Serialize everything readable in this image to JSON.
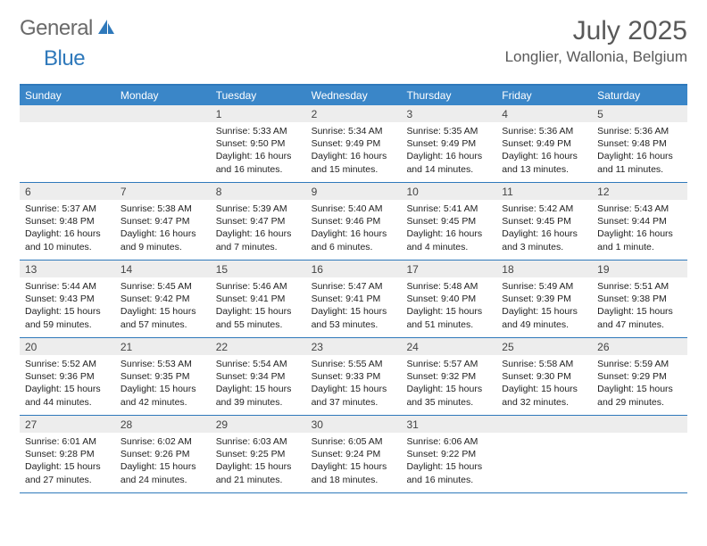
{
  "brand": {
    "part1": "General",
    "part2": "Blue"
  },
  "title": "July 2025",
  "location": "Longlier, Wallonia, Belgium",
  "colors": {
    "header_bar": "#3a86c8",
    "header_border": "#2f79bb",
    "daynum_bg": "#ededed",
    "text_gray": "#595959"
  },
  "dow": [
    "Sunday",
    "Monday",
    "Tuesday",
    "Wednesday",
    "Thursday",
    "Friday",
    "Saturday"
  ],
  "weeks": [
    [
      null,
      null,
      {
        "n": "1",
        "sr": "5:33 AM",
        "ss": "9:50 PM",
        "dl": "16 hours and 16 minutes."
      },
      {
        "n": "2",
        "sr": "5:34 AM",
        "ss": "9:49 PM",
        "dl": "16 hours and 15 minutes."
      },
      {
        "n": "3",
        "sr": "5:35 AM",
        "ss": "9:49 PM",
        "dl": "16 hours and 14 minutes."
      },
      {
        "n": "4",
        "sr": "5:36 AM",
        "ss": "9:49 PM",
        "dl": "16 hours and 13 minutes."
      },
      {
        "n": "5",
        "sr": "5:36 AM",
        "ss": "9:48 PM",
        "dl": "16 hours and 11 minutes."
      }
    ],
    [
      {
        "n": "6",
        "sr": "5:37 AM",
        "ss": "9:48 PM",
        "dl": "16 hours and 10 minutes."
      },
      {
        "n": "7",
        "sr": "5:38 AM",
        "ss": "9:47 PM",
        "dl": "16 hours and 9 minutes."
      },
      {
        "n": "8",
        "sr": "5:39 AM",
        "ss": "9:47 PM",
        "dl": "16 hours and 7 minutes."
      },
      {
        "n": "9",
        "sr": "5:40 AM",
        "ss": "9:46 PM",
        "dl": "16 hours and 6 minutes."
      },
      {
        "n": "10",
        "sr": "5:41 AM",
        "ss": "9:45 PM",
        "dl": "16 hours and 4 minutes."
      },
      {
        "n": "11",
        "sr": "5:42 AM",
        "ss": "9:45 PM",
        "dl": "16 hours and 3 minutes."
      },
      {
        "n": "12",
        "sr": "5:43 AM",
        "ss": "9:44 PM",
        "dl": "16 hours and 1 minute."
      }
    ],
    [
      {
        "n": "13",
        "sr": "5:44 AM",
        "ss": "9:43 PM",
        "dl": "15 hours and 59 minutes."
      },
      {
        "n": "14",
        "sr": "5:45 AM",
        "ss": "9:42 PM",
        "dl": "15 hours and 57 minutes."
      },
      {
        "n": "15",
        "sr": "5:46 AM",
        "ss": "9:41 PM",
        "dl": "15 hours and 55 minutes."
      },
      {
        "n": "16",
        "sr": "5:47 AM",
        "ss": "9:41 PM",
        "dl": "15 hours and 53 minutes."
      },
      {
        "n": "17",
        "sr": "5:48 AM",
        "ss": "9:40 PM",
        "dl": "15 hours and 51 minutes."
      },
      {
        "n": "18",
        "sr": "5:49 AM",
        "ss": "9:39 PM",
        "dl": "15 hours and 49 minutes."
      },
      {
        "n": "19",
        "sr": "5:51 AM",
        "ss": "9:38 PM",
        "dl": "15 hours and 47 minutes."
      }
    ],
    [
      {
        "n": "20",
        "sr": "5:52 AM",
        "ss": "9:36 PM",
        "dl": "15 hours and 44 minutes."
      },
      {
        "n": "21",
        "sr": "5:53 AM",
        "ss": "9:35 PM",
        "dl": "15 hours and 42 minutes."
      },
      {
        "n": "22",
        "sr": "5:54 AM",
        "ss": "9:34 PM",
        "dl": "15 hours and 39 minutes."
      },
      {
        "n": "23",
        "sr": "5:55 AM",
        "ss": "9:33 PM",
        "dl": "15 hours and 37 minutes."
      },
      {
        "n": "24",
        "sr": "5:57 AM",
        "ss": "9:32 PM",
        "dl": "15 hours and 35 minutes."
      },
      {
        "n": "25",
        "sr": "5:58 AM",
        "ss": "9:30 PM",
        "dl": "15 hours and 32 minutes."
      },
      {
        "n": "26",
        "sr": "5:59 AM",
        "ss": "9:29 PM",
        "dl": "15 hours and 29 minutes."
      }
    ],
    [
      {
        "n": "27",
        "sr": "6:01 AM",
        "ss": "9:28 PM",
        "dl": "15 hours and 27 minutes."
      },
      {
        "n": "28",
        "sr": "6:02 AM",
        "ss": "9:26 PM",
        "dl": "15 hours and 24 minutes."
      },
      {
        "n": "29",
        "sr": "6:03 AM",
        "ss": "9:25 PM",
        "dl": "15 hours and 21 minutes."
      },
      {
        "n": "30",
        "sr": "6:05 AM",
        "ss": "9:24 PM",
        "dl": "15 hours and 18 minutes."
      },
      {
        "n": "31",
        "sr": "6:06 AM",
        "ss": "9:22 PM",
        "dl": "15 hours and 16 minutes."
      },
      null,
      null
    ]
  ],
  "labels": {
    "sunrise": "Sunrise:",
    "sunset": "Sunset:",
    "daylight": "Daylight:"
  }
}
